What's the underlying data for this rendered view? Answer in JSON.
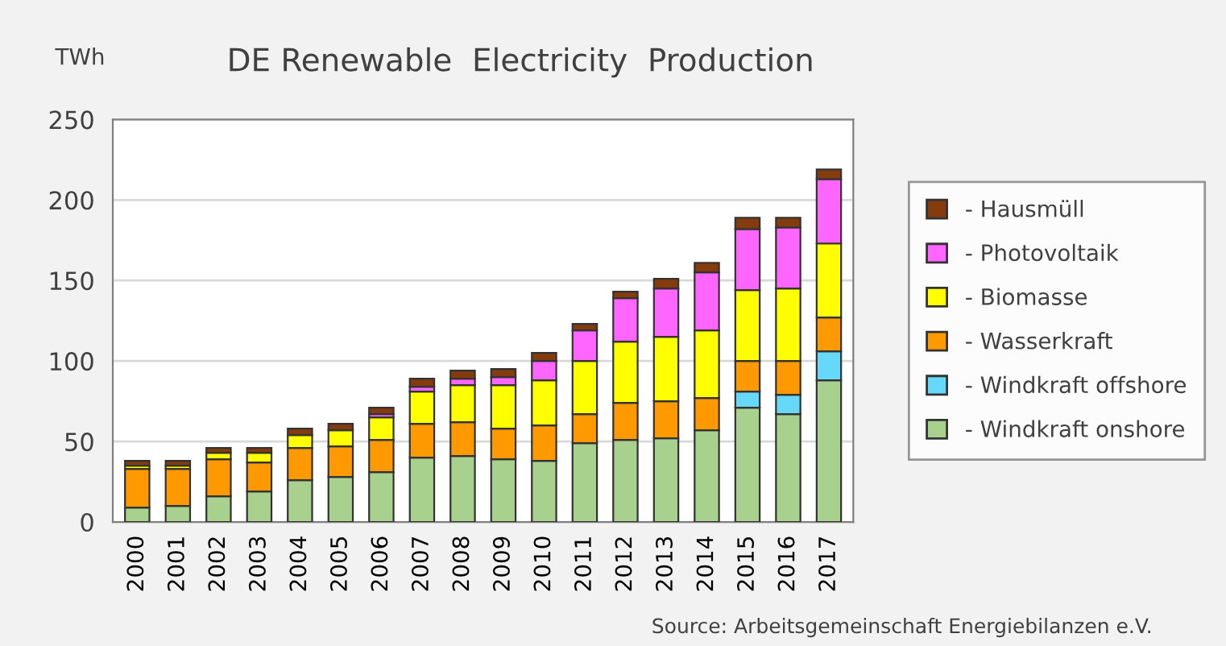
{
  "chart_data": {
    "type": "bar",
    "stacked": true,
    "title": "DE Renewable  Electricity  Production",
    "ylabel": "TWh",
    "categories": [
      "2000",
      "2001",
      "2002",
      "2003",
      "2004",
      "2005",
      "2006",
      "2007",
      "2008",
      "2009",
      "2010",
      "2011",
      "2012",
      "2013",
      "2014",
      "2015",
      "2016",
      "2017"
    ],
    "series": [
      {
        "name": "- Windkraft onshore",
        "color": "#a9d18e",
        "values": [
          9,
          10,
          16,
          19,
          26,
          28,
          31,
          40,
          41,
          39,
          38,
          49,
          51,
          52,
          57,
          71,
          67,
          88
        ]
      },
      {
        "name": "- Windkraft offshore",
        "color": "#66d9f8",
        "values": [
          null,
          null,
          null,
          null,
          null,
          null,
          null,
          null,
          null,
          null,
          null,
          null,
          null,
          null,
          null,
          10,
          12,
          18
        ]
      },
      {
        "name": "- Wasserkraft",
        "color": "#ff9900",
        "values": [
          24,
          23,
          23,
          18,
          20,
          19,
          20,
          21,
          21,
          19,
          22,
          18,
          23,
          23,
          20,
          19,
          21,
          21
        ]
      },
      {
        "name": "- Biomasse",
        "color": "#ffff00",
        "values": [
          2,
          2,
          4,
          6,
          8,
          10,
          14,
          20,
          23,
          27,
          28,
          33,
          38,
          40,
          42,
          44,
          45,
          46
        ]
      },
      {
        "name": "- Photovoltaik",
        "color": "#ff66ff",
        "values": [
          null,
          null,
          null,
          null,
          null,
          null,
          2,
          3,
          4,
          5,
          12,
          19,
          27,
          30,
          36,
          38,
          38,
          40
        ]
      },
      {
        "name": "- Hausmüll",
        "color": "#843c0c",
        "values": [
          3,
          3,
          3,
          3,
          4,
          4,
          4,
          5,
          5,
          5,
          5,
          4,
          4,
          6,
          6,
          7,
          6,
          6
        ]
      }
    ],
    "ylim": [
      0,
      250
    ],
    "yticks": [
      0,
      50,
      100,
      150,
      200,
      250
    ],
    "grid": "y",
    "legend": "right",
    "annotations": [
      "Source: Arbeitsgemeinschaft Energiebilanzen e.V."
    ]
  }
}
